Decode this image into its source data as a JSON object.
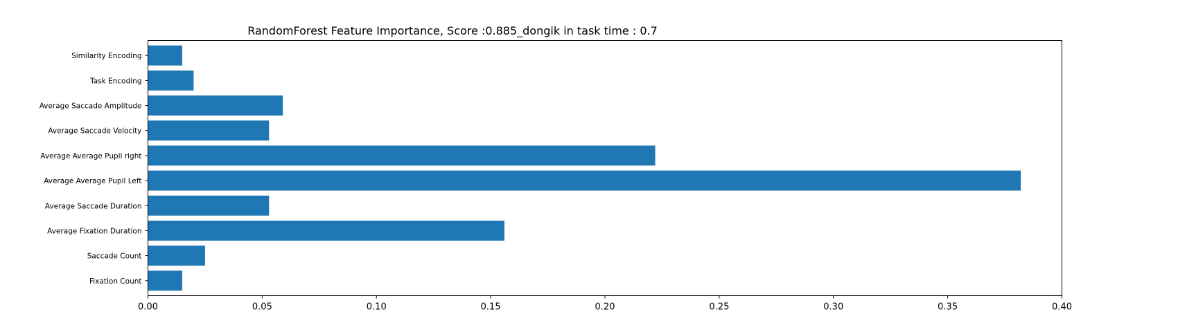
{
  "chart_data": {
    "type": "bar",
    "orientation": "horizontal",
    "title": "RandomForest Feature Importance, Score :0.885_dongik in task time : 0.7",
    "xlabel": "",
    "ylabel": "",
    "xlim": [
      0.0,
      0.4
    ],
    "x_ticks": [
      "0.00",
      "0.05",
      "0.10",
      "0.15",
      "0.20",
      "0.25",
      "0.30",
      "0.35",
      "0.40"
    ],
    "x_tick_values": [
      0.0,
      0.05,
      0.1,
      0.15,
      0.2,
      0.25,
      0.3,
      0.35,
      0.4
    ],
    "grid": false,
    "legend": "none",
    "bar_color": "#1f77b4",
    "categories": [
      "Fixation Count",
      "Saccade Count",
      "Average Fixation Duration",
      "Average Saccade Duration",
      "Average Average Pupil Left",
      "Average Average Pupil right",
      "Average Saccade Velocity",
      "Average Saccade Amplitude",
      "Task Encoding",
      "Similarity Encoding"
    ],
    "values": [
      0.015,
      0.025,
      0.156,
      0.053,
      0.382,
      0.222,
      0.053,
      0.059,
      0.02,
      0.015
    ]
  }
}
